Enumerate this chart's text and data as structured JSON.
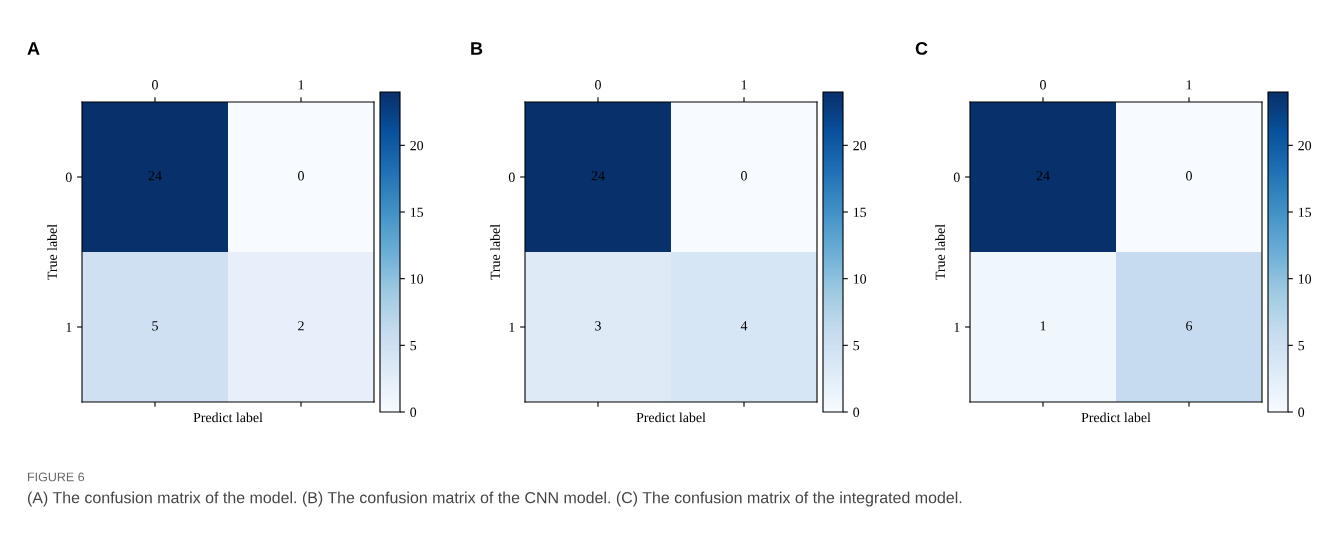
{
  "chart_data": [
    {
      "type": "heatmap",
      "title": "A",
      "xlabel": "Predict label",
      "ylabel": "True label",
      "categories": [
        "0",
        "1"
      ],
      "y_categories": [
        "0",
        "1"
      ],
      "cells": [
        [
          24,
          0
        ],
        [
          5,
          2
        ]
      ],
      "data_labels": true,
      "clim": [
        0,
        24
      ],
      "cticks": [
        0,
        5,
        10,
        15,
        20
      ],
      "annotations": [
        "FIGURE 6",
        "(A) The confusion matrix of the model. (B) The confusion matrix of the CNN model. (C) The confusion matrix of the integrated model."
      ]
    },
    {
      "type": "heatmap",
      "title": "B",
      "xlabel": "Predict label",
      "ylabel": "True label",
      "categories": [
        "0",
        "1"
      ],
      "y_categories": [
        "0",
        "1"
      ],
      "cells": [
        [
          24,
          0
        ],
        [
          3,
          4
        ]
      ],
      "data_labels": true,
      "clim": [
        0,
        24
      ],
      "cticks": [
        0,
        5,
        10,
        15,
        20
      ]
    },
    {
      "type": "heatmap",
      "title": "C",
      "xlabel": "Predict label",
      "ylabel": "True label",
      "categories": [
        "0",
        "1"
      ],
      "y_categories": [
        "0",
        "1"
      ],
      "cells": [
        [
          24,
          0
        ],
        [
          1,
          6
        ]
      ],
      "data_labels": true,
      "clim": [
        0,
        24
      ],
      "cticks": [
        0,
        5,
        10,
        15,
        20
      ]
    }
  ]
}
